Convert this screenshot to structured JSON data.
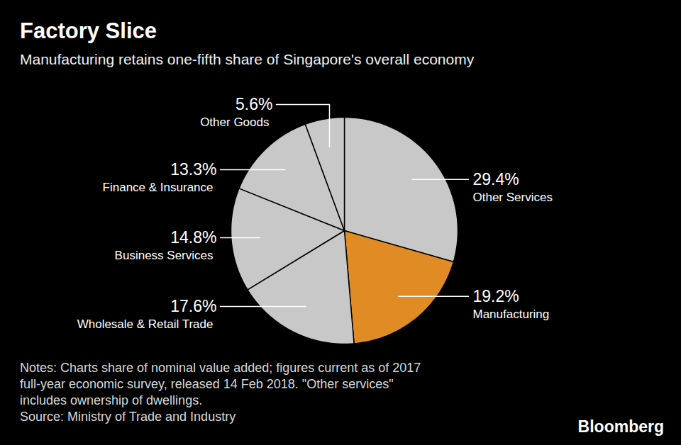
{
  "chart_data": {
    "type": "pie",
    "title": "Factory Slice",
    "subtitle": "Manufacturing retains one-fifth share of Singapore's overall economy",
    "categories": [
      "Other Services",
      "Manufacturing",
      "Wholesale & Retail Trade",
      "Business Services",
      "Finance & Insurance",
      "Other Goods"
    ],
    "values": [
      29.4,
      19.2,
      17.6,
      14.8,
      13.3,
      5.6
    ],
    "value_labels": [
      "29.4%",
      "19.2%",
      "17.6%",
      "14.8%",
      "13.3%",
      "5.6%"
    ],
    "colors": [
      "#c8c8c8",
      "#e08b24",
      "#c8c8c8",
      "#c8c8c8",
      "#c8c8c8",
      "#c8c8c8"
    ],
    "data_labels": true,
    "tick_labels": false,
    "notes": [
      "Notes: Charts share of nominal value added; figures current as of 2017",
      "full-year economic survey, released 14 Feb 2018. \"Other services\"",
      "includes ownership of dwellings."
    ],
    "source": "Source: Ministry of Trade and Industry",
    "credit": "Bloomberg"
  }
}
